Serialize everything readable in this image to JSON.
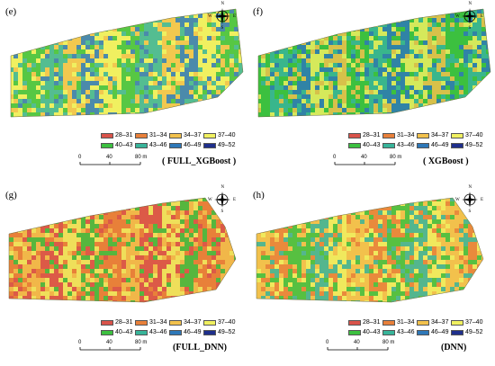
{
  "colors": {
    "c28_31": "#d9534a",
    "c31_34": "#e8803a",
    "c34_37": "#f2c14c",
    "c37_40": "#f0f060",
    "c40_43": "#3cc040",
    "c43_46": "#38b49a",
    "c46_49": "#2e78b8",
    "c49_52": "#1f2f8c"
  },
  "legend": [
    {
      "label": "28–31",
      "color": "#d9534a"
    },
    {
      "label": "31–34",
      "color": "#e8803a"
    },
    {
      "label": "34–37",
      "color": "#f2c14c"
    },
    {
      "label": "37–40",
      "color": "#f0f060"
    },
    {
      "label": "40–43",
      "color": "#3cc040"
    },
    {
      "label": "43–46",
      "color": "#38b49a"
    },
    {
      "label": "46–49",
      "color": "#2e78b8"
    },
    {
      "label": "49–52",
      "color": "#1f2f8c"
    }
  ],
  "compass": {
    "n": "N",
    "s": "S",
    "e": "E",
    "w": "W"
  },
  "scale": {
    "t0": "0",
    "t1": "40",
    "t2": "80 m"
  },
  "panels": [
    {
      "id": "e",
      "letter": "(e)",
      "caption": "( FULL_XGBoost )",
      "palette": [
        "#f0f060",
        "#3cc040",
        "#38b49a",
        "#f2c14c",
        "#2e78b8"
      ]
    },
    {
      "id": "f",
      "letter": "(f)",
      "caption": "( XGBoost )",
      "palette": [
        "#3cc040",
        "#38b49a",
        "#2e78b8",
        "#f0f060",
        "#f2c14c"
      ]
    },
    {
      "id": "g",
      "letter": "(g)",
      "caption": "(FULL_DNN)",
      "palette": [
        "#e8803a",
        "#f2c14c",
        "#d9534a",
        "#f0f060",
        "#3cc040"
      ]
    },
    {
      "id": "h",
      "letter": "(h)",
      "caption": "(DNN)",
      "palette": [
        "#f2c14c",
        "#e8803a",
        "#3cc040",
        "#38b49a",
        "#f0f060"
      ]
    }
  ]
}
